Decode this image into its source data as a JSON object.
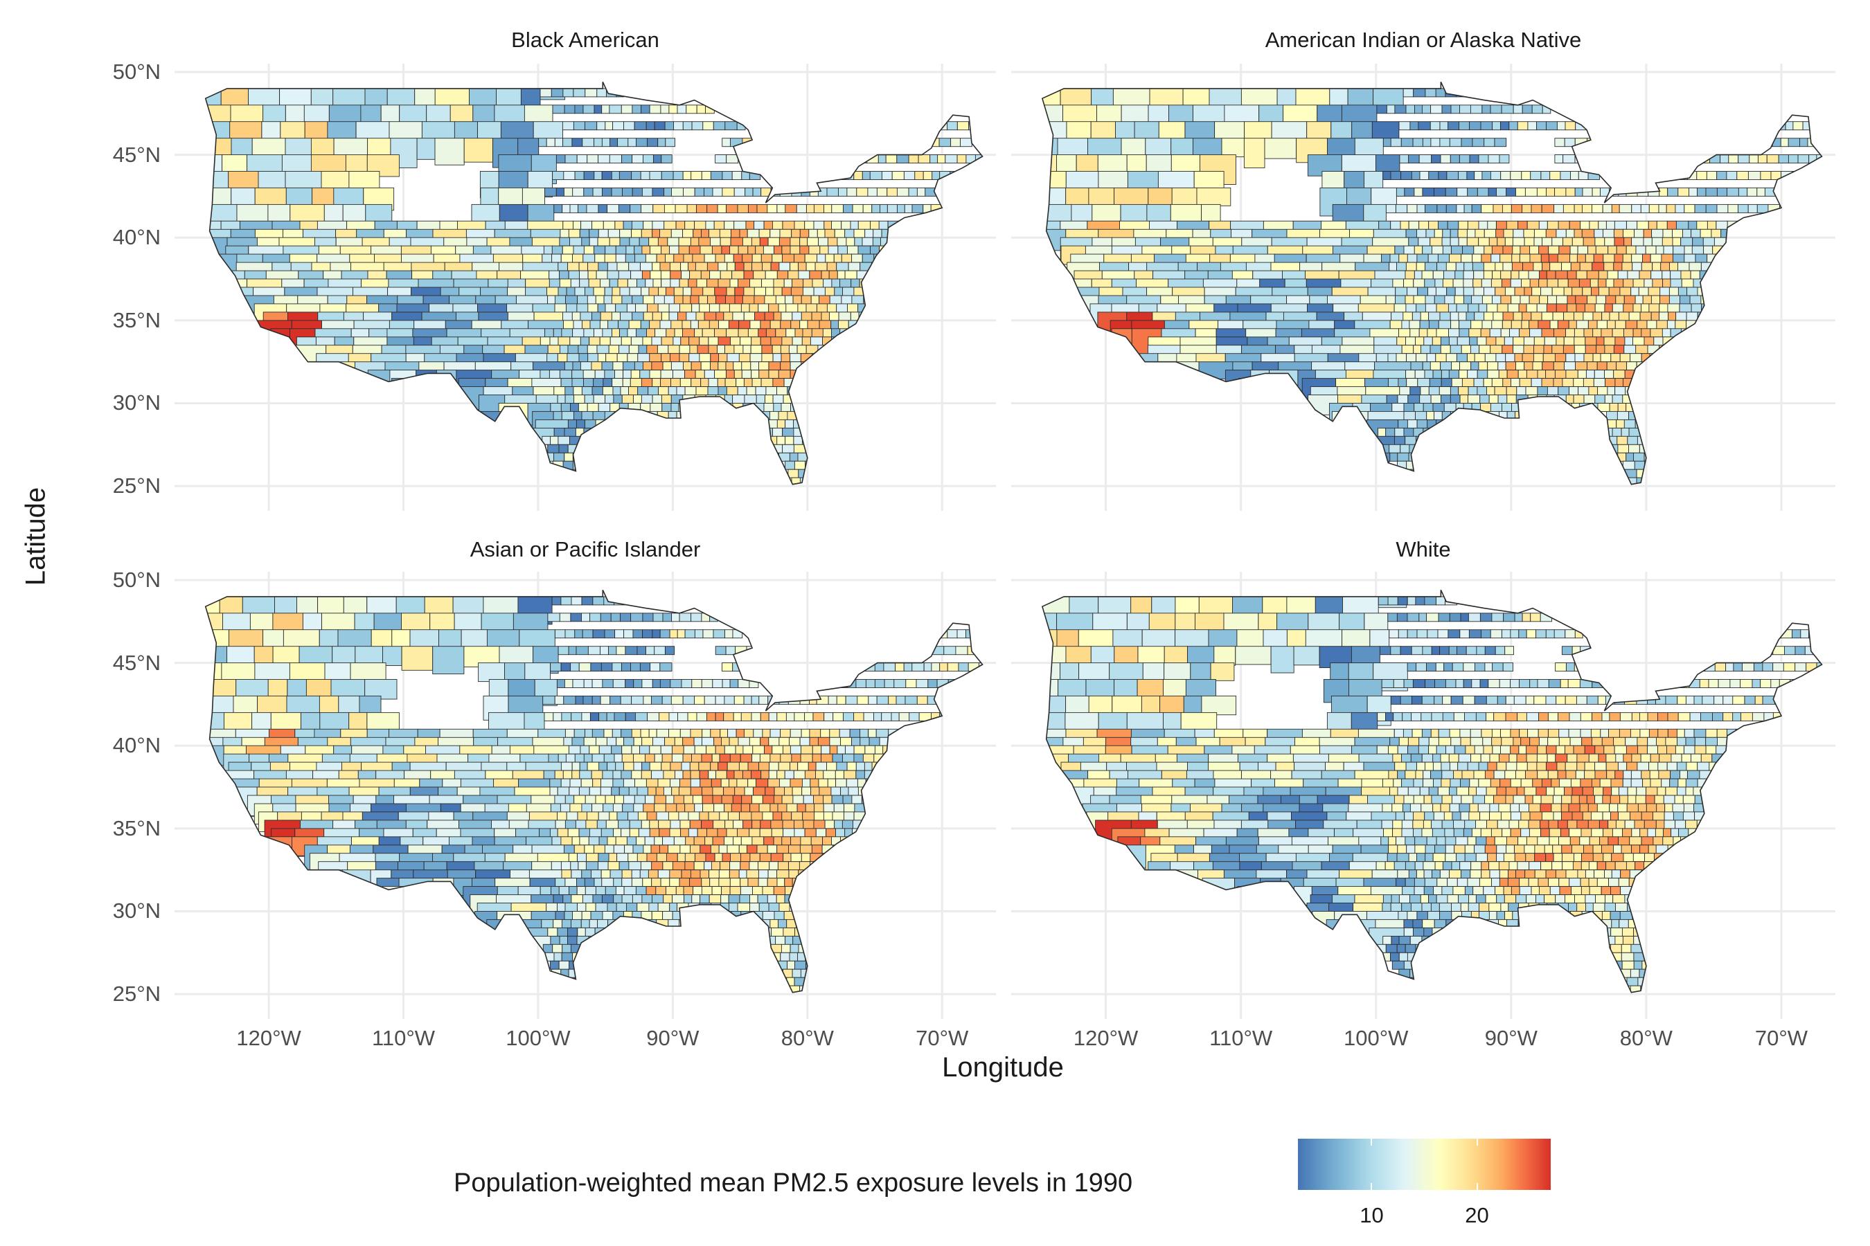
{
  "panels": [
    {
      "title": "Black American"
    },
    {
      "title": "American Indian or Alaska Native"
    },
    {
      "title": "Asian or Pacific Islander"
    },
    {
      "title": "White"
    }
  ],
  "axes": {
    "xlabel": "Longitude",
    "ylabel": "Latitude",
    "x_ticks": [
      "120°W",
      "110°W",
      "100°W",
      "90°W",
      "80°W",
      "70°W"
    ],
    "y_ticks": [
      "50°N",
      "45°N",
      "40°N",
      "35°N",
      "30°N",
      "25°N"
    ],
    "xlim": [
      -127,
      -66
    ],
    "ylim": [
      23.5,
      50.5
    ]
  },
  "legend": {
    "title": "Population-weighted mean PM2.5 exposure levels in 1990",
    "labels": [
      "10",
      "20"
    ],
    "label_values": [
      10,
      20
    ],
    "range": [
      3,
      27
    ],
    "colors": [
      "#4575b4",
      "#74add1",
      "#abd9e9",
      "#e0f3f8",
      "#ffffbf",
      "#fee090",
      "#fdae61",
      "#f46d43",
      "#d73027"
    ]
  },
  "chart_data": {
    "type": "heatmap",
    "subtype": "choropleth map of US counties, faceted by group",
    "facets": [
      "Black American",
      "American Indian or Alaska Native",
      "Asian or Pacific Islander",
      "White"
    ],
    "xlabel": "Longitude",
    "ylabel": "Latitude",
    "fill_label": "Population-weighted mean PM2.5 exposure levels in 1990",
    "fill_range": [
      3,
      27
    ],
    "grid": true
  }
}
